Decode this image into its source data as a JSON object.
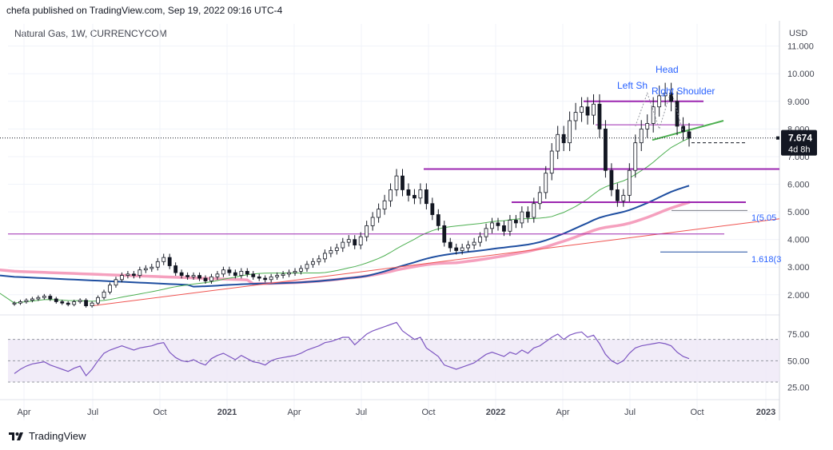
{
  "header": {
    "publisher": "chefa published on TradingView.com, Sep 19, 2022 09:16 UTC-4",
    "symbol": "Natural Gas, 1W, CURRENCYCOM"
  },
  "brand": {
    "name": "TradingView",
    "logo_icon": "tradingview-logo-icon"
  },
  "chart_data": {
    "type": "candlestick",
    "title": "Natural Gas, 1W, CURRENCYCOM",
    "currency": "USD",
    "x_labels": [
      "Apr",
      "Jul",
      "Oct",
      "2021",
      "Apr",
      "Jul",
      "Oct",
      "2022",
      "Apr",
      "Jul",
      "Oct",
      "2023"
    ],
    "y_ticks": [
      "2.000",
      "3.000",
      "4.000",
      "5.000",
      "6.000",
      "7.000",
      "8.000",
      "9.000",
      "10.000",
      "11.000"
    ],
    "ylim": [
      1.3,
      11.8
    ],
    "last_price": "7.674",
    "countdown": "4d 8h",
    "closes": [
      1.7,
      1.75,
      1.8,
      1.85,
      1.9,
      1.95,
      1.85,
      1.75,
      1.7,
      1.65,
      1.75,
      1.8,
      1.6,
      1.7,
      1.9,
      2.1,
      2.35,
      2.55,
      2.7,
      2.75,
      2.7,
      2.9,
      2.95,
      3.0,
      3.2,
      3.35,
      3.05,
      2.8,
      2.7,
      2.65,
      2.7,
      2.6,
      2.5,
      2.65,
      2.75,
      2.9,
      2.8,
      2.7,
      2.85,
      2.75,
      2.65,
      2.6,
      2.55,
      2.65,
      2.7,
      2.75,
      2.8,
      2.85,
      2.95,
      3.1,
      3.2,
      3.3,
      3.5,
      3.6,
      3.7,
      3.9,
      4.0,
      3.8,
      4.1,
      4.5,
      4.8,
      5.1,
      5.4,
      5.8,
      6.3,
      5.8,
      5.6,
      5.5,
      5.8,
      5.3,
      4.9,
      4.5,
      3.9,
      3.7,
      3.6,
      3.7,
      3.8,
      3.9,
      4.1,
      4.4,
      4.6,
      4.5,
      4.3,
      4.7,
      4.6,
      5.0,
      4.8,
      5.3,
      5.7,
      6.4,
      7.2,
      7.8,
      7.5,
      8.3,
      8.6,
      8.8,
      8.5,
      8.9,
      8.0,
      6.5,
      5.8,
      5.4,
      5.6,
      6.5,
      7.5,
      8.0,
      8.2,
      8.8,
      9.2,
      9.3,
      9.0,
      8.1,
      7.9,
      7.67
    ],
    "annotations": {
      "left_shoulder": "Left Sh",
      "head": "Head",
      "right_shoulder": "Right Shoulder",
      "fib_1": "1(5.05",
      "fib_1618": "1.618(3"
    },
    "levels": [
      9.0,
      8.15,
      6.55,
      5.35,
      4.2
    ],
    "rsi": {
      "ticks": [
        "25.00",
        "50.00",
        "75.00"
      ],
      "range": [
        15,
        90
      ],
      "band": [
        30,
        70
      ],
      "values": [
        38,
        42,
        45,
        47,
        48,
        49,
        46,
        44,
        42,
        40,
        43,
        45,
        36,
        42,
        50,
        57,
        60,
        62,
        64,
        62,
        60,
        62,
        63,
        64,
        66,
        67,
        58,
        53,
        50,
        49,
        51,
        48,
        46,
        52,
        55,
        57,
        54,
        51,
        55,
        52,
        49,
        48,
        46,
        50,
        52,
        53,
        54,
        55,
        57,
        60,
        62,
        64,
        67,
        68,
        70,
        72,
        72,
        65,
        70,
        75,
        78,
        80,
        82,
        84,
        86,
        78,
        74,
        70,
        72,
        62,
        58,
        54,
        46,
        44,
        42,
        44,
        46,
        48,
        52,
        56,
        58,
        56,
        54,
        58,
        56,
        60,
        57,
        62,
        64,
        68,
        72,
        75,
        70,
        74,
        76,
        77,
        72,
        74,
        66,
        56,
        50,
        47,
        50,
        57,
        62,
        64,
        65,
        66,
        67,
        66,
        64,
        58,
        54,
        52
      ],
      "last": "51.5"
    },
    "moving_averages": [
      {
        "name": "",
        "color": "#1e4ea0"
      },
      {
        "name": "",
        "color": "#f5a0be"
      },
      {
        "name": "",
        "color": "#4caf50"
      },
      {
        "name": "",
        "color": "#ef5350"
      }
    ]
  }
}
